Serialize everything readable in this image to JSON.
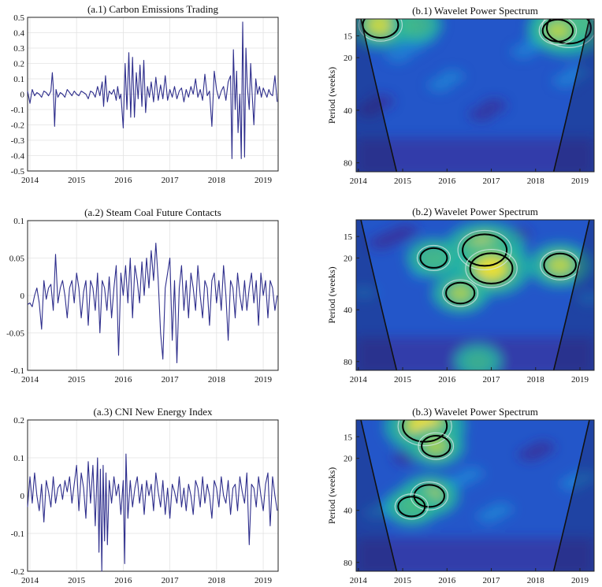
{
  "chart_data": [
    {
      "type": "line",
      "title": "(a.1) Carbon Emissions Trading",
      "x_ticks": [
        "2014",
        "2015",
        "2016",
        "2017",
        "2018",
        "2019"
      ],
      "y_ticks": [
        "0.5",
        "0.4",
        "0.3",
        "0.2",
        "0.1",
        "0",
        "-0.1",
        "-0.2",
        "-0.3",
        "-0.4",
        "-0.5"
      ],
      "xlim": [
        2013.95,
        2019.32
      ],
      "ylim": [
        -0.5,
        0.5
      ],
      "grid": true,
      "series": [
        {
          "x": [
            2013.95,
            2014.0,
            2014.05,
            2014.1,
            2014.15,
            2014.2,
            2014.25,
            2014.3,
            2014.35,
            2014.4,
            2014.45,
            2014.48,
            2014.5,
            2014.53,
            2014.56,
            2014.6,
            2014.65,
            2014.7,
            2014.75,
            2014.8,
            2014.85,
            2014.9,
            2014.95,
            2015.0,
            2015.05,
            2015.1,
            2015.15,
            2015.2,
            2015.25,
            2015.3,
            2015.35,
            2015.4,
            2015.45,
            2015.5,
            2015.55,
            2015.58,
            2015.62,
            2015.66,
            2015.7,
            2015.75,
            2015.8,
            2015.85,
            2015.88,
            2015.92,
            2015.95,
            2016.0,
            2016.04,
            2016.08,
            2016.12,
            2016.16,
            2016.2,
            2016.24,
            2016.28,
            2016.32,
            2016.36,
            2016.4,
            2016.44,
            2016.48,
            2016.52,
            2016.56,
            2016.6,
            2016.65,
            2016.7,
            2016.75,
            2016.8,
            2016.85,
            2016.9,
            2016.95,
            2017.0,
            2017.05,
            2017.1,
            2017.15,
            2017.2,
            2017.25,
            2017.3,
            2017.35,
            2017.4,
            2017.45,
            2017.5,
            2017.55,
            2017.6,
            2017.65,
            2017.7,
            2017.75,
            2017.8,
            2017.85,
            2017.9,
            2017.95,
            2018.0,
            2018.05,
            2018.1,
            2018.15,
            2018.2,
            2018.25,
            2018.3,
            2018.33,
            2018.36,
            2018.4,
            2018.43,
            2018.46,
            2018.5,
            2018.53,
            2018.56,
            2018.6,
            2018.63,
            2018.66,
            2018.7,
            2018.73,
            2018.76,
            2018.8,
            2018.84,
            2018.88,
            2018.92,
            2018.96,
            2019.0,
            2019.04,
            2019.08,
            2019.12,
            2019.16,
            2019.2,
            2019.25,
            2019.3
          ],
          "y": [
            0.02,
            -0.06,
            0.03,
            -0.01,
            0.01,
            0.0,
            -0.02,
            0.02,
            0.01,
            -0.01,
            0.02,
            0.14,
            0.05,
            -0.21,
            0.03,
            -0.02,
            0.01,
            0.0,
            -0.02,
            0.03,
            0.01,
            -0.01,
            0.02,
            0.0,
            -0.01,
            0.02,
            0.01,
            0.0,
            -0.03,
            0.02,
            0.01,
            -0.02,
            0.05,
            -0.01,
            0.08,
            -0.08,
            0.12,
            -0.05,
            0.02,
            0.0,
            0.03,
            -0.04,
            0.05,
            -0.03,
            0.0,
            -0.22,
            0.2,
            -0.1,
            0.27,
            -0.15,
            0.24,
            -0.15,
            0.14,
            -0.03,
            0.19,
            -0.08,
            0.22,
            -0.12,
            0.05,
            -0.02,
            0.08,
            -0.05,
            0.11,
            -0.04,
            0.06,
            -0.03,
            0.12,
            -0.04,
            0.03,
            -0.02,
            0.05,
            -0.03,
            0.02,
            0.04,
            -0.05,
            0.03,
            -0.02,
            0.05,
            0.0,
            0.1,
            -0.02,
            0.03,
            -0.04,
            0.13,
            -0.01,
            0.02,
            -0.21,
            0.15,
            0.03,
            -0.03,
            0.02,
            0.05,
            -0.04,
            0.08,
            0.12,
            -0.42,
            0.29,
            -0.1,
            0.15,
            -0.25,
            0.0,
            -0.42,
            0.47,
            -0.41,
            0.3,
            0.05,
            -0.1,
            0.2,
            0.02,
            -0.2,
            0.1,
            0.0,
            0.05,
            -0.02,
            0.04,
            0.01,
            -0.02,
            0.03,
            0.0,
            -0.01,
            0.12,
            -0.05
          ]
        }
      ]
    },
    {
      "type": "line",
      "title": "(a.2) Steam Coal Future Contacts",
      "x_ticks": [
        "2014",
        "2015",
        "2016",
        "2017",
        "2018",
        "2019"
      ],
      "y_ticks": [
        "0.1",
        "0.05",
        "0",
        "-0.05",
        "-0.1"
      ],
      "xlim": [
        2013.95,
        2019.32
      ],
      "ylim": [
        -0.1,
        0.1
      ],
      "grid": true,
      "series": [
        {
          "x": [
            2013.95,
            2014.0,
            2014.05,
            2014.1,
            2014.15,
            2014.2,
            2014.25,
            2014.3,
            2014.35,
            2014.4,
            2014.45,
            2014.5,
            2014.55,
            2014.6,
            2014.65,
            2014.7,
            2014.75,
            2014.8,
            2014.85,
            2014.9,
            2014.95,
            2015.0,
            2015.05,
            2015.1,
            2015.15,
            2015.2,
            2015.25,
            2015.3,
            2015.35,
            2015.4,
            2015.45,
            2015.5,
            2015.55,
            2015.6,
            2015.65,
            2015.7,
            2015.75,
            2015.8,
            2015.85,
            2015.9,
            2015.95,
            2016.0,
            2016.05,
            2016.1,
            2016.15,
            2016.2,
            2016.25,
            2016.3,
            2016.35,
            2016.4,
            2016.45,
            2016.5,
            2016.55,
            2016.6,
            2016.65,
            2016.7,
            2016.75,
            2016.8,
            2016.85,
            2016.9,
            2016.95,
            2017.0,
            2017.05,
            2017.1,
            2017.15,
            2017.2,
            2017.25,
            2017.3,
            2017.35,
            2017.4,
            2017.45,
            2017.5,
            2017.55,
            2017.6,
            2017.65,
            2017.7,
            2017.75,
            2017.8,
            2017.85,
            2017.9,
            2017.95,
            2018.0,
            2018.05,
            2018.1,
            2018.15,
            2018.2,
            2018.25,
            2018.3,
            2018.35,
            2018.4,
            2018.45,
            2018.5,
            2018.55,
            2018.6,
            2018.65,
            2018.7,
            2018.75,
            2018.8,
            2018.85,
            2018.9,
            2018.95,
            2019.0,
            2019.05,
            2019.1,
            2019.15,
            2019.2,
            2019.25,
            2019.3
          ],
          "y": [
            -0.012,
            -0.01,
            -0.015,
            0.0,
            0.01,
            -0.01,
            -0.045,
            0.02,
            -0.005,
            0.01,
            0.015,
            -0.02,
            0.055,
            -0.01,
            0.01,
            0.02,
            0.0,
            -0.03,
            0.01,
            0.02,
            -0.01,
            0.03,
            0.01,
            -0.03,
            0.005,
            0.02,
            -0.04,
            0.02,
            0.01,
            -0.02,
            0.03,
            -0.05,
            0.02,
            0.01,
            -0.02,
            0.025,
            -0.03,
            0.01,
            0.04,
            -0.08,
            0.03,
            0.0,
            0.04,
            -0.01,
            0.05,
            -0.03,
            0.04,
            0.02,
            -0.01,
            0.045,
            0.0,
            0.05,
            0.01,
            0.06,
            0.02,
            0.07,
            0.02,
            -0.05,
            -0.085,
            0.01,
            0.03,
            0.05,
            -0.06,
            0.02,
            -0.09,
            0.01,
            0.04,
            -0.02,
            0.02,
            -0.03,
            0.03,
            0.01,
            -0.02,
            0.04,
            0.0,
            -0.03,
            0.02,
            0.01,
            -0.04,
            0.02,
            0.03,
            -0.01,
            0.02,
            -0.02,
            0.04,
            0.0,
            -0.06,
            0.02,
            0.01,
            -0.03,
            0.03,
            0.0,
            -0.02,
            0.02,
            -0.02,
            0.01,
            0.03,
            -0.01,
            0.02,
            -0.04,
            0.03,
            0.0,
            0.02,
            -0.03,
            0.02,
            0.01,
            -0.02,
            0.0
          ]
        }
      ]
    },
    {
      "type": "line",
      "title": "(a.3) CNI New Energy Index",
      "x_ticks": [
        "2014",
        "2015",
        "2016",
        "2017",
        "2018",
        "2019"
      ],
      "y_ticks": [
        "0.2",
        "0.1",
        "0",
        "-0.1",
        "-0.2"
      ],
      "xlim": [
        2013.95,
        2019.32
      ],
      "ylim": [
        -0.2,
        0.2
      ],
      "grid": true,
      "series": [
        {
          "x": [
            2013.95,
            2014.0,
            2014.05,
            2014.1,
            2014.15,
            2014.2,
            2014.25,
            2014.3,
            2014.35,
            2014.4,
            2014.45,
            2014.5,
            2014.55,
            2014.6,
            2014.65,
            2014.7,
            2014.75,
            2014.8,
            2014.85,
            2014.9,
            2014.95,
            2015.0,
            2015.05,
            2015.1,
            2015.15,
            2015.2,
            2015.25,
            2015.3,
            2015.35,
            2015.4,
            2015.45,
            2015.48,
            2015.51,
            2015.54,
            2015.57,
            2015.6,
            2015.63,
            2015.66,
            2015.7,
            2015.75,
            2015.8,
            2015.85,
            2015.9,
            2015.95,
            2016.0,
            2016.03,
            2016.06,
            2016.1,
            2016.15,
            2016.2,
            2016.25,
            2016.3,
            2016.35,
            2016.4,
            2016.45,
            2016.5,
            2016.55,
            2016.6,
            2016.65,
            2016.7,
            2016.75,
            2016.8,
            2016.85,
            2016.9,
            2016.95,
            2017.0,
            2017.05,
            2017.1,
            2017.15,
            2017.2,
            2017.25,
            2017.3,
            2017.35,
            2017.4,
            2017.45,
            2017.5,
            2017.55,
            2017.6,
            2017.65,
            2017.7,
            2017.75,
            2017.8,
            2017.85,
            2017.9,
            2017.95,
            2018.0,
            2018.05,
            2018.1,
            2018.15,
            2018.2,
            2018.25,
            2018.3,
            2018.35,
            2018.4,
            2018.45,
            2018.5,
            2018.55,
            2018.6,
            2018.65,
            2018.7,
            2018.75,
            2018.8,
            2018.85,
            2018.9,
            2018.95,
            2019.0,
            2019.05,
            2019.1,
            2019.15,
            2019.2,
            2019.25,
            2019.3
          ],
          "y": [
            -0.03,
            0.05,
            -0.02,
            0.06,
            0.0,
            -0.04,
            0.03,
            -0.07,
            0.04,
            0.01,
            -0.03,
            0.05,
            -0.02,
            0.02,
            0.03,
            -0.01,
            0.04,
            0.01,
            0.05,
            -0.02,
            0.03,
            0.08,
            -0.04,
            0.06,
            0.02,
            -0.06,
            0.09,
            -0.02,
            0.08,
            -0.08,
            0.1,
            -0.15,
            0.07,
            -0.2,
            0.08,
            -0.12,
            0.06,
            -0.13,
            0.04,
            -0.02,
            0.05,
            0.0,
            0.03,
            -0.05,
            0.04,
            -0.18,
            0.11,
            -0.06,
            0.04,
            -0.03,
            0.02,
            0.05,
            -0.02,
            0.03,
            -0.05,
            0.04,
            0.0,
            0.03,
            -0.04,
            0.06,
            0.01,
            -0.03,
            0.04,
            -0.05,
            0.02,
            -0.06,
            0.03,
            0.01,
            -0.02,
            0.05,
            -0.03,
            0.02,
            -0.04,
            0.03,
            0.0,
            -0.05,
            0.04,
            0.02,
            -0.03,
            0.05,
            -0.02,
            0.03,
            0.0,
            -0.06,
            0.04,
            0.02,
            -0.03,
            0.05,
            0.0,
            -0.02,
            0.04,
            -0.05,
            0.02,
            0.03,
            -0.04,
            0.05,
            0.01,
            -0.02,
            0.06,
            -0.13,
            0.03,
            0.02,
            -0.03,
            0.05,
            0.0,
            -0.04,
            0.03,
            0.06,
            -0.08,
            0.05,
            0.0,
            -0.04
          ]
        }
      ]
    },
    {
      "type": "heatmap",
      "title": "(b.1) Wavelet Power Spectrum",
      "ylabel": "Period (weeks)",
      "x_ticks": [
        "2014",
        "2015",
        "2016",
        "2017",
        "2018",
        "2019"
      ],
      "y_ticks": [
        "15",
        "20",
        "40",
        "80"
      ],
      "xlim": [
        2013.95,
        2019.32
      ],
      "y_scale": "log2",
      "ylim_weeks": [
        12,
        90
      ],
      "colormap": [
        "#3e2a8f",
        "#2356c9",
        "#1d8fd8",
        "#21b3a4",
        "#6cc766",
        "#f0e033"
      ],
      "high_power_regions": [
        {
          "center_x": 2014.5,
          "center_period": 13,
          "level": 0.75
        },
        {
          "center_x": 2018.75,
          "center_period": 13.5,
          "level": 1.0
        },
        {
          "center_x": 2018.5,
          "center_period": 14,
          "level": 0.6
        },
        {
          "center_x": 2015.3,
          "center_period": 13,
          "level": 0.45
        }
      ]
    },
    {
      "type": "heatmap",
      "title": "(b.2) Wavelet Power Spectrum",
      "ylabel": "Period (weeks)",
      "x_ticks": [
        "2014",
        "2015",
        "2016",
        "2017",
        "2018",
        "2019"
      ],
      "y_ticks": [
        "15",
        "20",
        "40",
        "80"
      ],
      "xlim": [
        2013.95,
        2019.32
      ],
      "y_scale": "log2",
      "ylim_weeks": [
        12,
        90
      ],
      "colormap": [
        "#3e2a8f",
        "#2356c9",
        "#1d8fd8",
        "#21b3a4",
        "#6cc766",
        "#f0e033"
      ],
      "high_power_regions": [
        {
          "center_x": 2016.85,
          "center_period": 18,
          "level": 1.0
        },
        {
          "center_x": 2017.0,
          "center_period": 23,
          "level": 0.95
        },
        {
          "center_x": 2016.3,
          "center_period": 32,
          "level": 0.55
        },
        {
          "center_x": 2018.55,
          "center_period": 22,
          "level": 0.65
        },
        {
          "center_x": 2015.7,
          "center_period": 20,
          "level": 0.5
        },
        {
          "center_x": 2016.7,
          "center_period": 80,
          "level": 0.35
        }
      ]
    },
    {
      "type": "heatmap",
      "title": "(b.3) Wavelet Power Spectrum",
      "ylabel": "Period (weeks)",
      "x_ticks": [
        "2014",
        "2015",
        "2016",
        "2017",
        "2018",
        "2019"
      ],
      "y_ticks": [
        "15",
        "20",
        "40",
        "80"
      ],
      "xlim": [
        2013.95,
        2019.32
      ],
      "y_scale": "log2",
      "ylim_weeks": [
        12,
        90
      ],
      "colormap": [
        "#3e2a8f",
        "#2356c9",
        "#1d8fd8",
        "#21b3a4",
        "#6cc766",
        "#f0e033"
      ],
      "high_power_regions": [
        {
          "center_x": 2015.5,
          "center_period": 13,
          "level": 1.0
        },
        {
          "center_x": 2015.75,
          "center_period": 17,
          "level": 0.55
        },
        {
          "center_x": 2015.6,
          "center_period": 33,
          "level": 0.6
        },
        {
          "center_x": 2015.2,
          "center_period": 38,
          "level": 0.5
        }
      ]
    }
  ]
}
